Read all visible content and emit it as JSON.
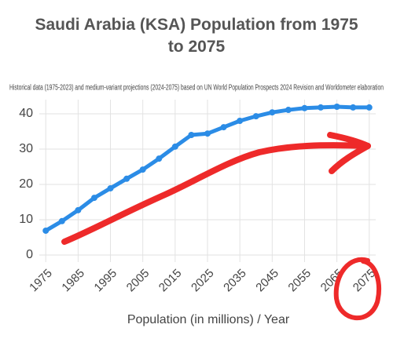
{
  "chart_data": {
    "type": "line",
    "title": "Saudi Arabia (KSA) Population from 1975 to 2075",
    "subtitle": "Historical data (1975-2023) and medium-variant projections (2024-2075) based on UN World Population Prospects 2024 Revision and Worldometer elaboration",
    "x_label": "Population (in millions) / Year",
    "x": [
      1975,
      1980,
      1985,
      1990,
      1995,
      2000,
      2005,
      2010,
      2015,
      2020,
      2025,
      2030,
      2035,
      2040,
      2045,
      2050,
      2055,
      2060,
      2065,
      2070,
      2075
    ],
    "values": [
      6.9,
      9.6,
      12.7,
      16.2,
      18.9,
      21.6,
      24.2,
      27.3,
      30.7,
      34.0,
      34.4,
      36.2,
      38.0,
      39.3,
      40.4,
      41.1,
      41.6,
      41.8,
      42.0,
      41.8,
      41.8
    ],
    "color": "#2b8ce6",
    "xlim": [
      1973,
      2077
    ],
    "xticks": [
      1975,
      1985,
      1995,
      2005,
      2015,
      2025,
      2035,
      2045,
      2055,
      2065,
      2075
    ],
    "ylim": [
      -2,
      44
    ],
    "yticks": [
      0,
      10,
      20,
      30,
      40
    ],
    "grid": true
  }
}
